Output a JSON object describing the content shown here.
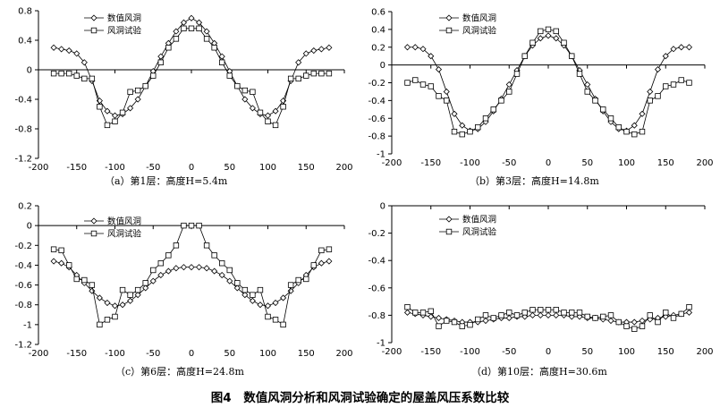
{
  "figure_caption": "图4　数值风洞分析和风洞试验确定的屋盖风压系数比较",
  "chart_data": [
    {
      "type": "line",
      "caption": "（a）第1层：高度H=5.4m",
      "xlim": [
        -200,
        200
      ],
      "ylim": [
        -1.2,
        0.8
      ],
      "xticks": [
        -200,
        -150,
        -100,
        -50,
        0,
        50,
        100,
        150,
        200
      ],
      "yticks": [
        0.8,
        0.4,
        0,
        -0.4,
        -0.8,
        -1.2
      ],
      "ytick_labels": [
        "0.8",
        "0.4",
        "0",
        "-0.4",
        "-0.8",
        "-1.2"
      ],
      "legend_position": "top-left",
      "grid": false,
      "series": [
        {
          "name": "数值风洞",
          "marker": "diamond",
          "x": [
            -180,
            -170,
            -160,
            -150,
            -140,
            -130,
            -120,
            -110,
            -100,
            -90,
            -80,
            -70,
            -60,
            -50,
            -40,
            -30,
            -20,
            -10,
            0,
            10,
            20,
            30,
            40,
            50,
            60,
            70,
            80,
            90,
            100,
            110,
            120,
            130,
            140,
            150,
            160,
            170,
            180
          ],
          "y": [
            0.3,
            0.28,
            0.26,
            0.22,
            0.1,
            -0.15,
            -0.42,
            -0.56,
            -0.62,
            -0.6,
            -0.52,
            -0.4,
            -0.22,
            -0.02,
            0.18,
            0.36,
            0.52,
            0.64,
            0.7,
            0.64,
            0.52,
            0.36,
            0.18,
            -0.02,
            -0.22,
            -0.4,
            -0.52,
            -0.6,
            -0.62,
            -0.56,
            -0.42,
            -0.15,
            0.1,
            0.22,
            0.26,
            0.28,
            0.3
          ]
        },
        {
          "name": "风洞试验",
          "marker": "square",
          "x": [
            -180,
            -170,
            -160,
            -150,
            -140,
            -130,
            -120,
            -110,
            -100,
            -90,
            -80,
            -70,
            -60,
            -50,
            -40,
            -30,
            -20,
            -10,
            0,
            10,
            20,
            30,
            40,
            50,
            60,
            70,
            80,
            90,
            100,
            110,
            120,
            130,
            140,
            150,
            160,
            170,
            180
          ],
          "y": [
            -0.05,
            -0.05,
            -0.05,
            -0.08,
            -0.12,
            -0.12,
            -0.5,
            -0.75,
            -0.7,
            -0.58,
            -0.3,
            -0.28,
            -0.22,
            -0.08,
            0.1,
            0.3,
            0.42,
            0.56,
            0.56,
            0.56,
            0.42,
            0.3,
            0.1,
            -0.08,
            -0.22,
            -0.28,
            -0.3,
            -0.58,
            -0.7,
            -0.75,
            -0.5,
            -0.12,
            -0.12,
            -0.08,
            -0.05,
            -0.05,
            -0.05
          ]
        }
      ]
    },
    {
      "type": "line",
      "caption": "（b）第3层：高度H=14.8m",
      "xlim": [
        -200,
        200
      ],
      "ylim": [
        -1,
        0.6
      ],
      "xticks": [
        -200,
        -150,
        -100,
        -50,
        0,
        50,
        100,
        150,
        200
      ],
      "yticks": [
        0.6,
        0.4,
        0.2,
        0,
        -0.2,
        -0.4,
        -0.6,
        -0.8,
        -1
      ],
      "ytick_labels": [
        "0.6",
        "0.4",
        "0.2",
        "0",
        "-0.2",
        "-0.4",
        "-0.6",
        "-0.8",
        "-1"
      ],
      "legend_position": "top-left",
      "grid": false,
      "series": [
        {
          "name": "数值风洞",
          "marker": "diamond",
          "x": [
            -180,
            -170,
            -160,
            -150,
            -140,
            -130,
            -120,
            -110,
            -100,
            -90,
            -80,
            -70,
            -60,
            -50,
            -40,
            -30,
            -20,
            -10,
            0,
            10,
            20,
            30,
            40,
            50,
            60,
            70,
            80,
            90,
            100,
            110,
            120,
            130,
            140,
            150,
            160,
            170,
            180
          ],
          "y": [
            0.2,
            0.2,
            0.18,
            0.1,
            -0.05,
            -0.3,
            -0.55,
            -0.68,
            -0.74,
            -0.72,
            -0.64,
            -0.52,
            -0.38,
            -0.22,
            -0.06,
            0.1,
            0.22,
            0.3,
            0.33,
            0.3,
            0.22,
            0.1,
            -0.06,
            -0.22,
            -0.38,
            -0.52,
            -0.64,
            -0.72,
            -0.74,
            -0.68,
            -0.55,
            -0.3,
            -0.05,
            0.1,
            0.18,
            0.2,
            0.2
          ]
        },
        {
          "name": "风洞试验",
          "marker": "square",
          "x": [
            -180,
            -170,
            -160,
            -150,
            -140,
            -130,
            -120,
            -110,
            -100,
            -90,
            -80,
            -70,
            -60,
            -50,
            -40,
            -30,
            -20,
            -10,
            0,
            10,
            20,
            30,
            40,
            50,
            60,
            70,
            80,
            90,
            100,
            110,
            120,
            130,
            140,
            150,
            160,
            170,
            180
          ],
          "y": [
            -0.2,
            -0.17,
            -0.22,
            -0.24,
            -0.35,
            -0.4,
            -0.75,
            -0.78,
            -0.75,
            -0.7,
            -0.6,
            -0.5,
            -0.4,
            -0.3,
            -0.1,
            0.1,
            0.25,
            0.38,
            0.4,
            0.38,
            0.25,
            0.1,
            -0.1,
            -0.3,
            -0.4,
            -0.5,
            -0.6,
            -0.7,
            -0.75,
            -0.78,
            -0.75,
            -0.4,
            -0.35,
            -0.24,
            -0.22,
            -0.17,
            -0.2
          ]
        }
      ]
    },
    {
      "type": "line",
      "caption": "（c）第6层：高度H=24.8m",
      "xlim": [
        -200,
        200
      ],
      "ylim": [
        -1.2,
        0.2
      ],
      "xticks": [
        -200,
        -150,
        -100,
        -50,
        0,
        50,
        100,
        150,
        200
      ],
      "yticks": [
        0.2,
        0,
        -0.2,
        -0.4,
        -0.6,
        -0.8,
        -1,
        -1.2
      ],
      "ytick_labels": [
        "0.2",
        "0",
        "-0.2",
        "-0.4",
        "-0.6",
        "-0.8",
        "-1",
        "-1.2"
      ],
      "legend_position": "top-left",
      "grid": false,
      "series": [
        {
          "name": "数值风洞",
          "marker": "diamond",
          "x": [
            -180,
            -170,
            -160,
            -150,
            -140,
            -130,
            -120,
            -110,
            -100,
            -90,
            -80,
            -70,
            -60,
            -50,
            -40,
            -30,
            -20,
            -10,
            0,
            10,
            20,
            30,
            40,
            50,
            60,
            70,
            80,
            90,
            100,
            110,
            120,
            130,
            140,
            150,
            160,
            170,
            180
          ],
          "y": [
            -0.36,
            -0.38,
            -0.42,
            -0.5,
            -0.58,
            -0.66,
            -0.73,
            -0.78,
            -0.81,
            -0.8,
            -0.76,
            -0.7,
            -0.63,
            -0.56,
            -0.5,
            -0.46,
            -0.43,
            -0.42,
            -0.42,
            -0.42,
            -0.43,
            -0.46,
            -0.5,
            -0.56,
            -0.63,
            -0.7,
            -0.76,
            -0.8,
            -0.81,
            -0.78,
            -0.73,
            -0.66,
            -0.58,
            -0.5,
            -0.42,
            -0.38,
            -0.36
          ]
        },
        {
          "name": "风洞试验",
          "marker": "square",
          "x": [
            -180,
            -170,
            -160,
            -150,
            -140,
            -130,
            -120,
            -110,
            -100,
            -90,
            -80,
            -70,
            -60,
            -50,
            -40,
            -30,
            -20,
            -10,
            0,
            10,
            20,
            30,
            40,
            50,
            60,
            70,
            80,
            90,
            100,
            110,
            120,
            130,
            140,
            150,
            160,
            170,
            180
          ],
          "y": [
            -0.24,
            -0.25,
            -0.4,
            -0.54,
            -0.55,
            -0.6,
            -1.0,
            -0.95,
            -0.92,
            -0.65,
            -0.7,
            -0.65,
            -0.58,
            -0.45,
            -0.38,
            -0.3,
            -0.2,
            0.0,
            0.0,
            0.0,
            -0.2,
            -0.3,
            -0.38,
            -0.45,
            -0.58,
            -0.65,
            -0.7,
            -0.65,
            -0.92,
            -0.95,
            -1.0,
            -0.6,
            -0.55,
            -0.54,
            -0.4,
            -0.25,
            -0.24
          ]
        }
      ]
    },
    {
      "type": "line",
      "caption": "（d）第10层：高度H=30.6m",
      "xlim": [
        -200,
        200
      ],
      "ylim": [
        -1,
        0
      ],
      "xticks": [
        -200,
        -150,
        -100,
        -50,
        0,
        50,
        100,
        150,
        200
      ],
      "yticks": [
        0,
        -0.2,
        -0.4,
        -0.6,
        -0.8,
        -1
      ],
      "ytick_labels": [
        "0",
        "-0.2",
        "-0.4",
        "-0.6",
        "-0.8",
        "-1"
      ],
      "legend_position": "top-left",
      "grid": false,
      "series": [
        {
          "name": "数值风洞",
          "marker": "diamond",
          "x": [
            -180,
            -170,
            -160,
            -150,
            -140,
            -130,
            -120,
            -110,
            -100,
            -90,
            -80,
            -70,
            -60,
            -50,
            -40,
            -30,
            -20,
            -10,
            0,
            10,
            20,
            30,
            40,
            50,
            60,
            70,
            80,
            90,
            100,
            110,
            120,
            130,
            140,
            150,
            160,
            170,
            180
          ],
          "y": [
            -0.78,
            -0.79,
            -0.8,
            -0.81,
            -0.82,
            -0.83,
            -0.84,
            -0.85,
            -0.85,
            -0.85,
            -0.84,
            -0.83,
            -0.82,
            -0.82,
            -0.81,
            -0.81,
            -0.8,
            -0.8,
            -0.8,
            -0.8,
            -0.8,
            -0.81,
            -0.81,
            -0.82,
            -0.82,
            -0.83,
            -0.84,
            -0.85,
            -0.85,
            -0.85,
            -0.84,
            -0.83,
            -0.82,
            -0.81,
            -0.8,
            -0.79,
            -0.78
          ]
        },
        {
          "name": "风洞试验",
          "marker": "square",
          "x": [
            -180,
            -170,
            -160,
            -150,
            -140,
            -130,
            -120,
            -110,
            -100,
            -90,
            -80,
            -70,
            -60,
            -50,
            -40,
            -30,
            -20,
            -10,
            0,
            10,
            20,
            30,
            40,
            50,
            60,
            70,
            80,
            90,
            100,
            110,
            120,
            130,
            140,
            150,
            160,
            170,
            180
          ],
          "y": [
            -0.74,
            -0.78,
            -0.78,
            -0.77,
            -0.88,
            -0.84,
            -0.85,
            -0.88,
            -0.87,
            -0.83,
            -0.8,
            -0.82,
            -0.8,
            -0.78,
            -0.8,
            -0.78,
            -0.76,
            -0.76,
            -0.76,
            -0.76,
            -0.78,
            -0.78,
            -0.78,
            -0.81,
            -0.82,
            -0.81,
            -0.8,
            -0.85,
            -0.88,
            -0.9,
            -0.88,
            -0.8,
            -0.85,
            -0.78,
            -0.82,
            -0.79,
            -0.74
          ]
        }
      ]
    }
  ]
}
